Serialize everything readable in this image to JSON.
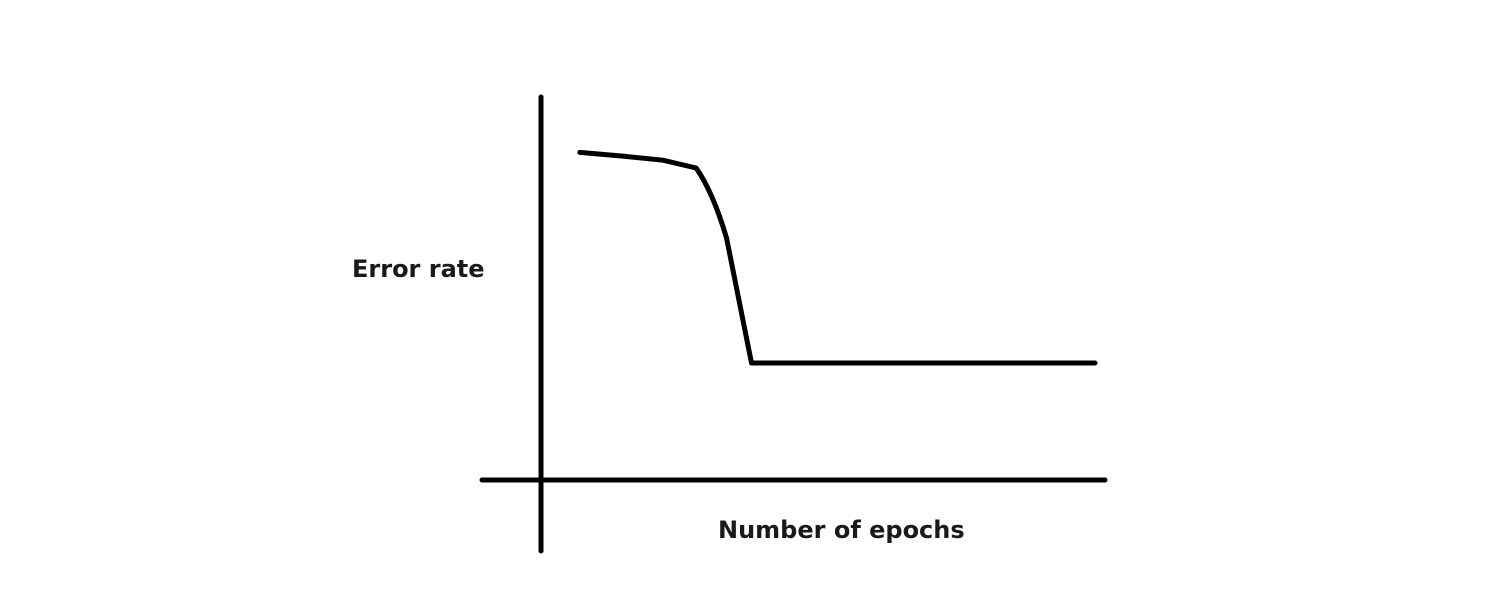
{
  "chart_data": {
    "type": "line",
    "title": "",
    "xlabel": "Number of epochs",
    "ylabel": "Error rate",
    "grid": false,
    "legend": "none",
    "x": [
      0.07,
      0.15,
      0.22,
      0.28,
      0.31,
      0.335,
      0.38,
      0.55,
      1.0
    ],
    "series": [
      {
        "values": [
          0.84,
          0.83,
          0.82,
          0.8,
          0.74,
          0.62,
          0.3,
          0.3,
          0.3
        ]
      }
    ],
    "xlim": [
      0,
      1
    ],
    "ylim": [
      0,
      1
    ],
    "line_color": "#000000"
  }
}
